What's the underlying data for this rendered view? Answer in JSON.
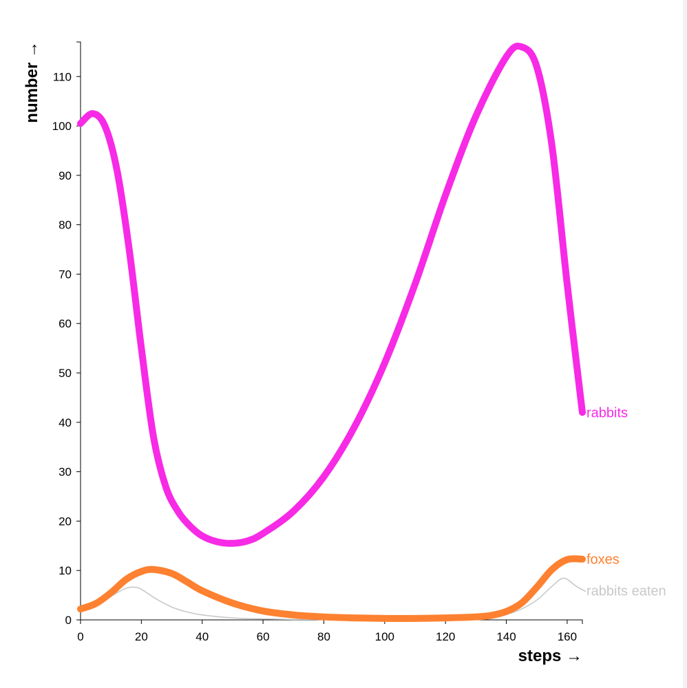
{
  "chart_data": {
    "type": "line",
    "xlabel": "steps →",
    "ylabel": "number →",
    "xlim": [
      0,
      165
    ],
    "ylim": [
      0,
      117
    ],
    "xticks": [
      0,
      20,
      40,
      60,
      80,
      100,
      120,
      140,
      160
    ],
    "yticks": [
      0,
      10,
      20,
      30,
      40,
      50,
      60,
      70,
      80,
      90,
      100,
      110
    ],
    "grid": false,
    "series": [
      {
        "name": "rabbits",
        "color": "#f72ae6",
        "line": "thick",
        "x": [
          0,
          4,
          8,
          12,
          16,
          20,
          24,
          28,
          32,
          36,
          40,
          45,
          50,
          55,
          60,
          70,
          80,
          90,
          100,
          110,
          120,
          130,
          140,
          145,
          150,
          155,
          160,
          165
        ],
        "y": [
          100.5,
          102.5,
          100,
          91,
          75,
          55,
          37,
          27,
          22,
          19,
          17,
          15.8,
          15.5,
          16,
          17.5,
          22,
          29,
          39,
          52,
          68,
          86,
          102,
          114,
          116,
          112,
          96,
          68,
          42
        ]
      },
      {
        "name": "foxes",
        "color": "#fd8130",
        "line": "thick",
        "x": [
          0,
          5,
          10,
          15,
          20,
          24,
          30,
          35,
          40,
          50,
          60,
          70,
          80,
          90,
          100,
          110,
          120,
          130,
          135,
          140,
          145,
          150,
          155,
          160,
          165
        ],
        "y": [
          2.2,
          3.3,
          5.5,
          8.2,
          9.8,
          10.2,
          9.4,
          7.7,
          5.9,
          3.4,
          1.8,
          1,
          0.6,
          0.4,
          0.3,
          0.3,
          0.4,
          0.6,
          0.9,
          1.7,
          3.4,
          6.6,
          10.2,
          12.2,
          12.3
        ]
      },
      {
        "name": "rabbits eaten",
        "color": "#c8c8c8",
        "line": "thin",
        "x": [
          0,
          5,
          10,
          15,
          18,
          20,
          25,
          30,
          35,
          40,
          50,
          60,
          70,
          80,
          100,
          120,
          130,
          135,
          140,
          145,
          150,
          155,
          158,
          160,
          163,
          166
        ],
        "y": [
          2,
          3,
          4.8,
          6.4,
          6.6,
          6.2,
          4.2,
          2.6,
          1.6,
          1,
          0.4,
          0.2,
          0.1,
          0.1,
          0.1,
          0.1,
          0.3,
          0.6,
          1.1,
          2.2,
          4,
          6.8,
          8.3,
          8.2,
          6.8,
          5.8
        ]
      }
    ]
  }
}
